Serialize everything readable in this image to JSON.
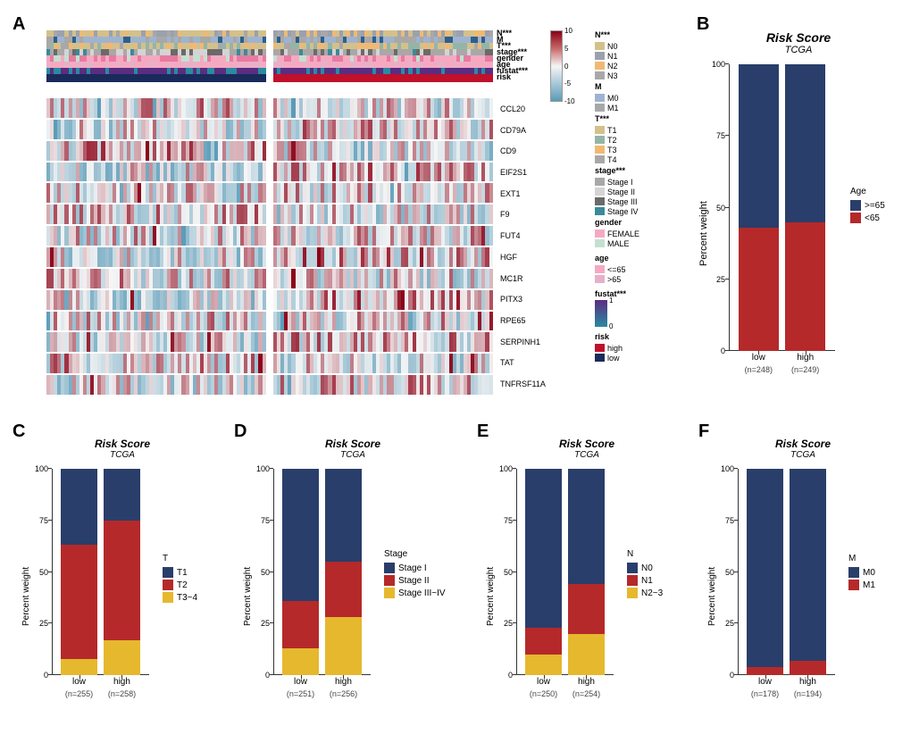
{
  "panels": {
    "A": {
      "label": "A"
    },
    "B": {
      "label": "B"
    },
    "C": {
      "label": "C"
    },
    "D": {
      "label": "D"
    },
    "E": {
      "label": "E"
    },
    "F": {
      "label": "F"
    }
  },
  "panelA": {
    "annotations": [
      {
        "name": "N***",
        "palette": [
          "#d4c08a",
          "#9aa1ae",
          "#f0b973",
          "#a8a8a8"
        ]
      },
      {
        "name": "M",
        "palette": [
          "#9fb3d1",
          "#a8a8a8",
          "#2c5f8d"
        ]
      },
      {
        "name": "T***",
        "palette": [
          "#d4c08a",
          "#93b5a8",
          "#f0b973",
          "#a8a8a8"
        ]
      },
      {
        "name": "stage***",
        "palette": [
          "#a8a8a8",
          "#d4d4d4",
          "#6a6a6a",
          "#3a8a9a"
        ]
      },
      {
        "name": "gender",
        "palette": [
          "#f5a9c1",
          "#e87aa1",
          "#c3e0d1"
        ]
      },
      {
        "name": "age",
        "palette": [
          "#f5a9c1",
          "#e8b0c8"
        ]
      },
      {
        "name": "fustat***",
        "palette": [
          "#5a2d82",
          "#2a8aa0"
        ]
      },
      {
        "name": "risk",
        "palette": [
          "#1a2a5a",
          "#c0102a"
        ]
      }
    ],
    "genes": [
      "CCL20",
      "CD79A",
      "CD9",
      "EIF2S1",
      "EXT1",
      "F9",
      "FUT4",
      "HGF",
      "MC1R",
      "PITX3",
      "RPE65",
      "SERPINH1",
      "TAT",
      "TNFRSF11A"
    ],
    "heatmap_palette_low": "#5a9bb8",
    "heatmap_palette_mid": "#f5f5f5",
    "heatmap_palette_high": "#8b0016",
    "colorbar_ticks": [
      "10",
      "5",
      "0",
      "-5",
      "-10"
    ],
    "legends": {
      "N": {
        "title": "N***",
        "items": [
          {
            "label": "N0",
            "color": "#d4c08a"
          },
          {
            "label": "N1",
            "color": "#9aa1ae"
          },
          {
            "label": "N2",
            "color": "#f0b973"
          },
          {
            "label": "N3",
            "color": "#a8a8a8"
          }
        ]
      },
      "M": {
        "title": "M",
        "items": [
          {
            "label": "M0",
            "color": "#9fb3d1"
          },
          {
            "label": "M1",
            "color": "#a8a8a8"
          }
        ]
      },
      "T": {
        "title": "T***",
        "items": [
          {
            "label": "T1",
            "color": "#d4c08a"
          },
          {
            "label": "T2",
            "color": "#93b5a8"
          },
          {
            "label": "T3",
            "color": "#f0b973"
          },
          {
            "label": "T4",
            "color": "#a8a8a8"
          }
        ]
      },
      "stage": {
        "title": "stage***",
        "items": [
          {
            "label": "Stage I",
            "color": "#a8a8a8"
          },
          {
            "label": "Stage II",
            "color": "#d4d4d4"
          },
          {
            "label": "Stage III",
            "color": "#6a6a6a"
          },
          {
            "label": "Stage IV",
            "color": "#3a8a9a"
          }
        ]
      },
      "gender": {
        "title": "gender",
        "items": [
          {
            "label": "FEMALE",
            "color": "#f5a9c1"
          },
          {
            "label": "MALE",
            "color": "#c3e0d1"
          }
        ]
      },
      "age": {
        "title": "age",
        "items": [
          {
            "label": "<=65",
            "color": "#f5a9c1"
          },
          {
            "label": ">65",
            "color": "#e8b0c8"
          }
        ]
      },
      "fustat": {
        "title": "fustat***",
        "gradient": [
          "#5a2d82",
          "#2a8aa0"
        ],
        "ticks": [
          "1",
          "0"
        ]
      },
      "risk": {
        "title": "risk",
        "items": [
          {
            "label": "high",
            "color": "#c0102a"
          },
          {
            "label": "low",
            "color": "#1a2a5a"
          }
        ]
      }
    }
  },
  "stacked": {
    "common": {
      "title": "Risk Score",
      "subtitle": "TCGA",
      "ylabel": "Percent weight",
      "yticks": [
        0,
        25,
        50,
        75,
        100
      ],
      "xcats": [
        "low",
        "high"
      ],
      "bg": "#ffffff",
      "grid": "#ffffff"
    },
    "B": {
      "legend_title": "Age",
      "groups": [
        {
          "label": ">=65",
          "color": "#293e6a"
        },
        {
          "label": "<65",
          "color": "#b5292a"
        }
      ],
      "bars": {
        "low": {
          "n": 248,
          "values": [
            57,
            43
          ]
        },
        "high": {
          "n": 249,
          "values": [
            55,
            45
          ]
        }
      },
      "title_fontsize": 14
    },
    "C": {
      "legend_title": "T",
      "groups": [
        {
          "label": "T1",
          "color": "#293e6a"
        },
        {
          "label": "T2",
          "color": "#b5292a"
        },
        {
          "label": "T3~4",
          "color": "#e6b82e"
        }
      ],
      "bars": {
        "low": {
          "n": 255,
          "values": [
            37,
            55,
            8
          ]
        },
        "high": {
          "n": 258,
          "values": [
            25,
            58,
            17
          ]
        }
      },
      "title_fontsize": 12
    },
    "D": {
      "legend_title": "Stage",
      "groups": [
        {
          "label": "Stage I",
          "color": "#293e6a"
        },
        {
          "label": "Stage II",
          "color": "#b5292a"
        },
        {
          "label": "Stage III~IV",
          "color": "#e6b82e"
        }
      ],
      "bars": {
        "low": {
          "n": 251,
          "values": [
            64,
            23,
            13
          ]
        },
        "high": {
          "n": 256,
          "values": [
            45,
            27,
            28
          ]
        }
      },
      "title_fontsize": 12
    },
    "E": {
      "legend_title": "N",
      "groups": [
        {
          "label": "N0",
          "color": "#293e6a"
        },
        {
          "label": "N1",
          "color": "#b5292a"
        },
        {
          "label": "N2~3",
          "color": "#e6b82e"
        }
      ],
      "bars": {
        "low": {
          "n": 250,
          "values": [
            77,
            13,
            10
          ]
        },
        "high": {
          "n": 254,
          "values": [
            56,
            24,
            20
          ]
        }
      },
      "title_fontsize": 12
    },
    "F": {
      "legend_title": "M",
      "groups": [
        {
          "label": "M0",
          "color": "#293e6a"
        },
        {
          "label": "M1",
          "color": "#b5292a"
        }
      ],
      "bars": {
        "low": {
          "n": 178,
          "values": [
            96,
            4
          ]
        },
        "high": {
          "n": 194,
          "values": [
            93,
            7
          ]
        }
      },
      "title_fontsize": 12
    }
  }
}
